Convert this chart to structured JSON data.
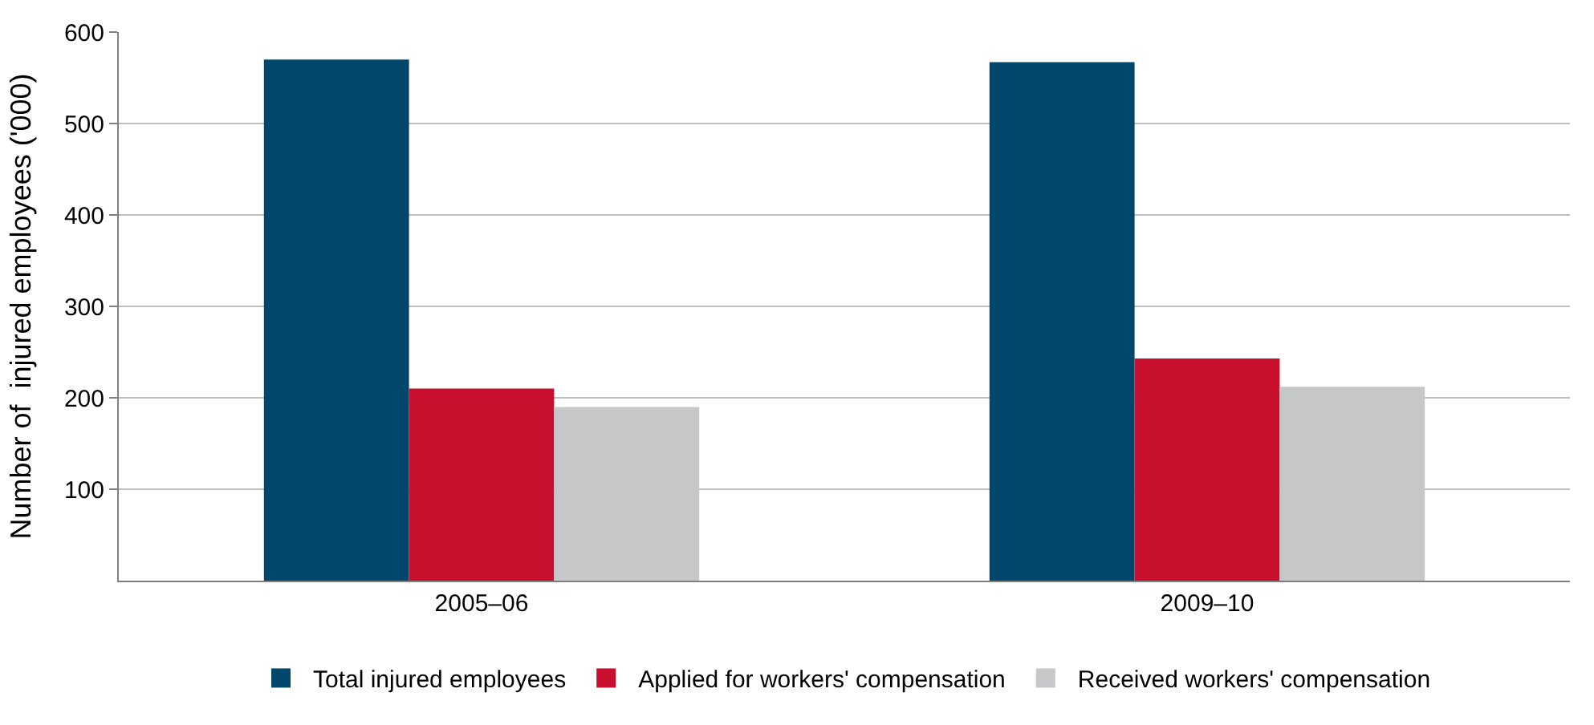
{
  "chart_data": {
    "type": "bar",
    "ylabel": "Number of  injured employees ('000)",
    "categories": [
      "2005–06",
      "2009–10"
    ],
    "series": [
      {
        "name": "Total injured employees",
        "color": "#00476b",
        "values": [
          570,
          567
        ]
      },
      {
        "name": "Applied for workers' compensation",
        "color": "#c8102e",
        "values": [
          210,
          243
        ]
      },
      {
        "name": "Received workers' compensation",
        "color": "#c6c7c8",
        "values": [
          190,
          212
        ]
      }
    ],
    "ylim": [
      0,
      600
    ],
    "yticks": [
      100,
      200,
      300,
      400,
      500,
      600
    ],
    "grid": "y",
    "legend": "bottom"
  }
}
